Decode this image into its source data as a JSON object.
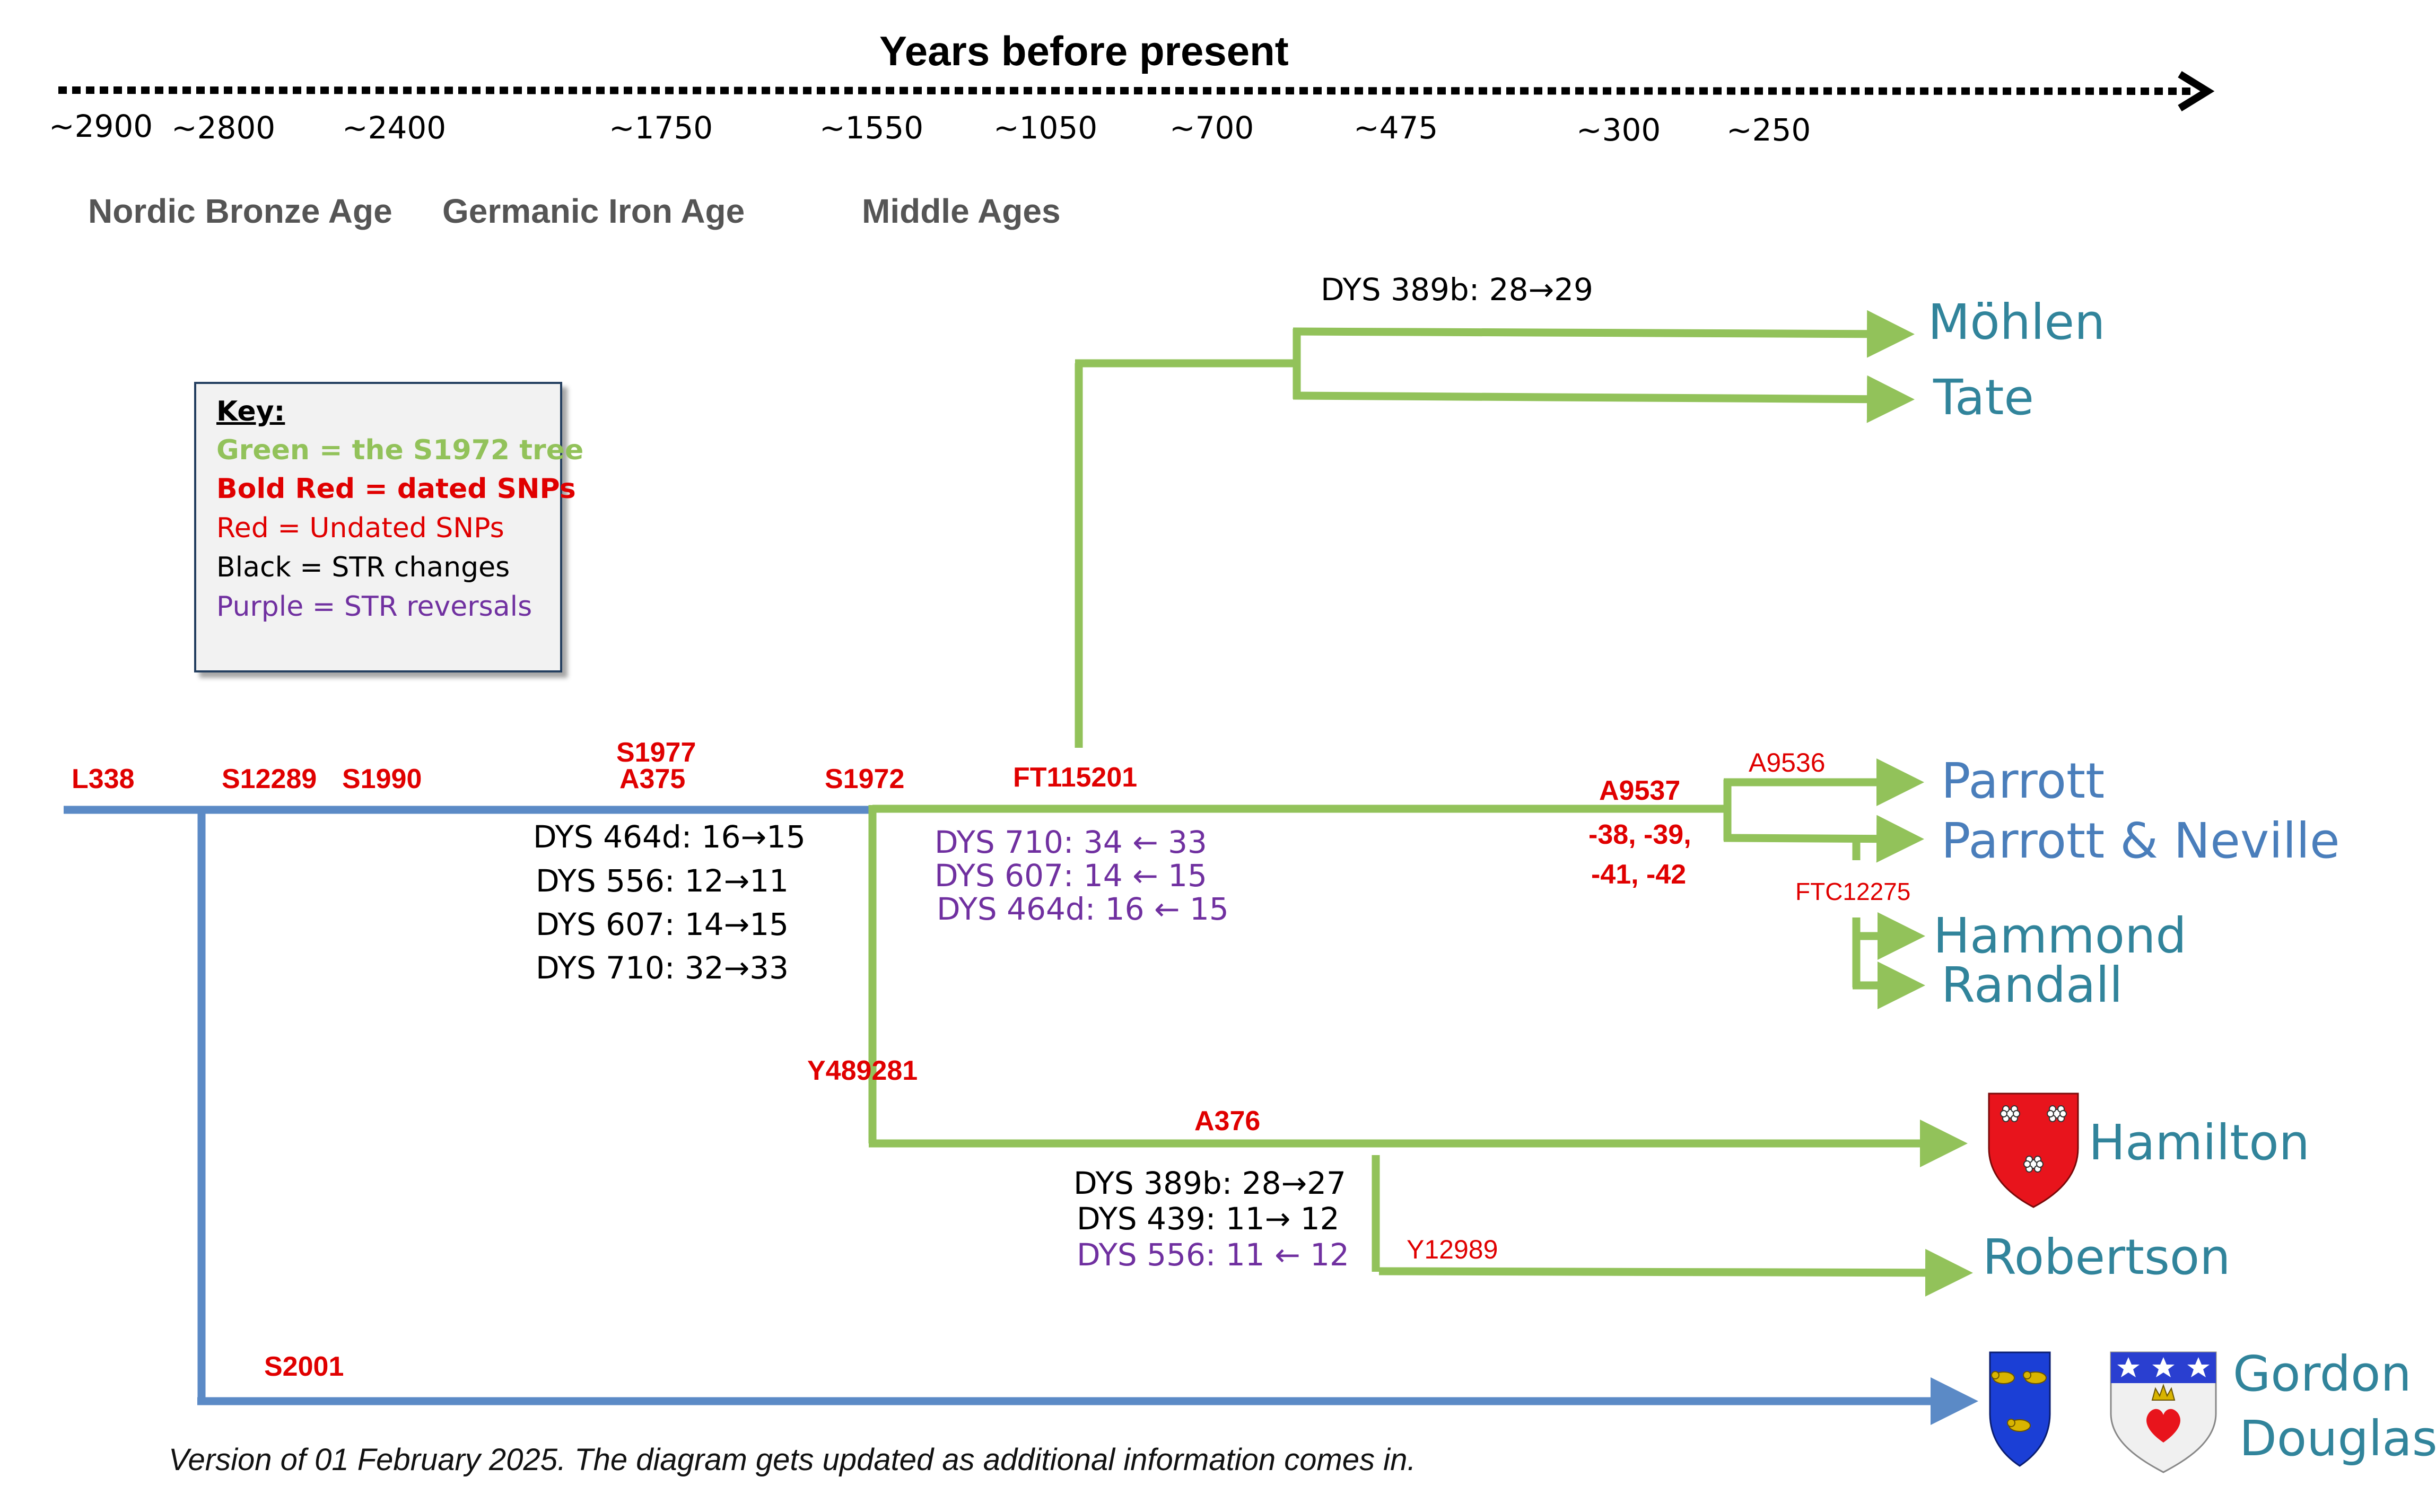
{
  "title": "Years before present",
  "years": [
    "~2900",
    "~2800",
    "~2400",
    "~1750",
    "~1550",
    "~1050",
    "~700",
    "~475",
    "~300",
    "~250"
  ],
  "eras": [
    "Nordic Bronze Age",
    "Germanic Iron Age",
    "Middle Ages"
  ],
  "key": {
    "heading": "Key:",
    "green": "Green = the S1972 tree",
    "bold_red": "Bold Red = dated SNPs",
    "red": "Red = Undated SNPs",
    "black": "Black = STR changes",
    "purple": "Purple = STR reversals"
  },
  "snps": {
    "l338": "L338",
    "s12289": "S12289",
    "s1990": "S1990",
    "s1977": "S1977",
    "a375": "A375",
    "s1972": "S1972",
    "ft115201": "FT115201",
    "a9537": "A9537",
    "a9537_extra1": "-38, -39,",
    "a9537_extra2": "-41, -42",
    "a9536": "A9536",
    "ftc12275": "FTC12275",
    "y489281": "Y489281",
    "a376": "A376",
    "y12989": "Y12989",
    "s2001": "S2001"
  },
  "str_changes": {
    "dys389b_mohlen": "DYS 389b: 28→29",
    "dys464d": "DYS 464d: 16→15",
    "dys556": "DYS 556:   12→11",
    "dys607": "DYS 607:   14→15",
    "dys710": "DYS 710:   32→33",
    "dys389b_hamilton": "DYS 389b: 28→27",
    "dys439": "DYS 439: 11→ 12"
  },
  "str_reversals": {
    "dys710_rev": "DYS 710: 34 ← 33",
    "dys607_rev": "DYS 607: 14 ← 15",
    "dys464d_rev": "DYS 464d: 16 ← 15",
    "dys556_rev": "DYS 556: 11 ← 12"
  },
  "surnames": {
    "mohlen": "Möhlen",
    "tate": "Tate",
    "parrott": "Parrott",
    "parrott_neville": "Parrott & Neville",
    "hammond": "Hammond",
    "randall": "Randall",
    "hamilton": "Hamilton",
    "robertson": "Robertson",
    "gordon": "Gordon",
    "douglas": "Douglas"
  },
  "footer": "Version of 01 February 2025.   The diagram gets updated as additional information comes in.",
  "colors": {
    "green": "#92c25a",
    "blue": "#5b8ac6",
    "red": "#e00000",
    "purple": "#7030a0",
    "teal": "#31849b",
    "shield_red": "#e8141c",
    "shield_blue": "#1b3fd6"
  }
}
